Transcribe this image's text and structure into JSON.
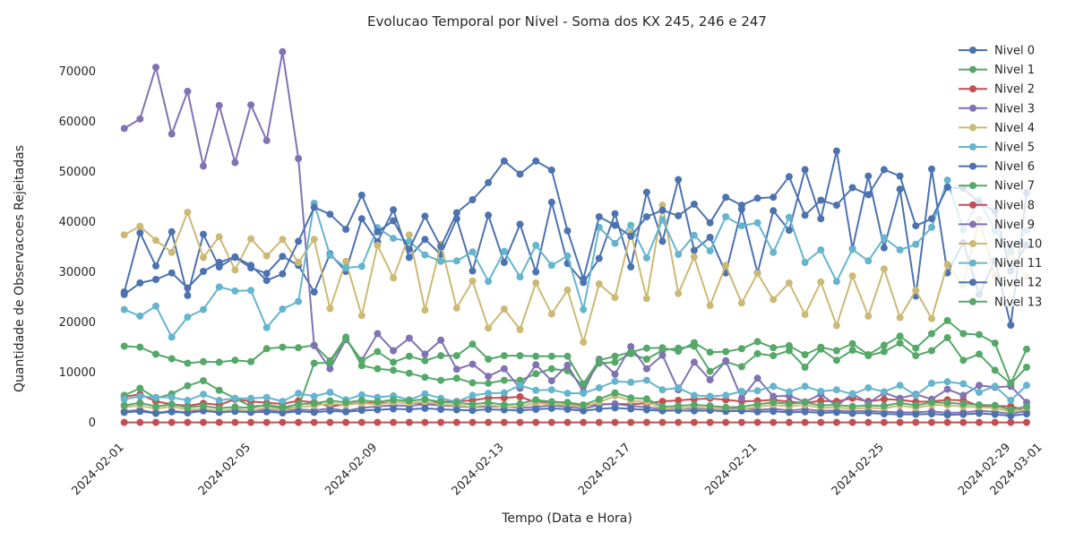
{
  "chart_data": {
    "type": "line",
    "title": "Evolucao Temporal por Nivel - Soma dos KX 245, 246 e 247",
    "xlabel": "Tempo (Data e Hora)",
    "ylabel": "Quantidade de Observacoes Rejeitadas",
    "x_start_day": 1,
    "x_step_days": 0.5,
    "xlim_days": [
      0.5,
      29.5
    ],
    "ylim": [
      -1500,
      76000
    ],
    "x_ticks": [
      {
        "day": 1,
        "label": "2024-02-01"
      },
      {
        "day": 5,
        "label": "2024-02-05"
      },
      {
        "day": 9,
        "label": "2024-02-09"
      },
      {
        "day": 13,
        "label": "2024-02-13"
      },
      {
        "day": 17,
        "label": "2024-02-17"
      },
      {
        "day": 21,
        "label": "2024-02-21"
      },
      {
        "day": 25,
        "label": "2024-02-25"
      },
      {
        "day": 29,
        "label": "2024-02-29"
      },
      {
        "day": 30,
        "label": "2024-03-01"
      }
    ],
    "y_ticks": [
      0,
      10000,
      20000,
      30000,
      40000,
      50000,
      60000,
      70000
    ],
    "legend_position": "upper-right",
    "series": [
      {
        "name": "Nivel 0",
        "color": "#4c72b0",
        "values": [
          26000,
          37800,
          31200,
          38000,
          25300,
          37500,
          31000,
          32900,
          30800,
          29700,
          33100,
          31300,
          26000,
          33600,
          30100,
          40600,
          36000,
          42400,
          32900,
          36500,
          33500,
          40600,
          30200,
          41300,
          31900,
          39500,
          30000,
          43900,
          31700,
          27900,
          32700,
          41600,
          31000,
          45900,
          36100,
          48400,
          34300,
          36900,
          29800,
          42500,
          29800,
          42200,
          38300,
          50400,
          40600,
          54100,
          34600,
          49100,
          34800,
          46500,
          25200,
          50500,
          29800,
          35800,
          25500,
          32300,
          19400,
          45800
        ]
      },
      {
        "name": "Nivel 1",
        "color": "#55a868",
        "values": [
          15200,
          15000,
          13600,
          12700,
          11800,
          12100,
          12000,
          12400,
          12100,
          14700,
          15000,
          14900,
          15400,
          12300,
          17000,
          11300,
          10700,
          10400,
          9800,
          9000,
          8400,
          8800,
          7900,
          7800,
          8400,
          8400,
          9700,
          10700,
          10300,
          7200,
          11800,
          12000,
          13700,
          12600,
          14400,
          14800,
          15200,
          10200,
          12100,
          11100,
          13700,
          13300,
          14300,
          11000,
          14600,
          12400,
          14400,
          13300,
          14100,
          15800,
          13300,
          14300,
          16900,
          12400,
          13600,
          10400,
          7700,
          11000
        ]
      },
      {
        "name": "Nivel 2",
        "color": "#c44e52",
        "values": [
          5100,
          5600,
          4200,
          3600,
          3300,
          3800,
          3500,
          4600,
          4200,
          3900,
          3700,
          4300,
          4000,
          3200,
          3600,
          3900,
          3800,
          4000,
          3900,
          3800,
          4100,
          4200,
          4400,
          4900,
          4900,
          5100,
          4000,
          4100,
          3900,
          3400,
          3600,
          3700,
          3600,
          3800,
          4200,
          4400,
          4600,
          4800,
          4500,
          4200,
          4300,
          4500,
          4100,
          3900,
          4300,
          4200,
          4800,
          4200,
          4600,
          4500,
          4100,
          4200,
          4500,
          4400,
          3300,
          3300,
          3200,
          2400
        ]
      },
      {
        "name": "Nivel 3",
        "color": "#8172b3",
        "values": [
          58600,
          60500,
          70800,
          57500,
          66000,
          51100,
          63200,
          51800,
          63300,
          56200,
          73900,
          52600,
          15300,
          10700,
          16500,
          12400,
          17700,
          14300,
          16800,
          13600,
          16400,
          10600,
          11600,
          9200,
          10700,
          6800,
          11500,
          8300,
          11400,
          6100,
          12600,
          9600,
          15100,
          10700,
          13400,
          6500,
          12000,
          8500,
          12300,
          4800,
          8800,
          5200,
          5300,
          4100,
          5600,
          3300,
          5700,
          3900,
          5900,
          4800,
          5600,
          4600,
          6600,
          5400,
          7400,
          7000,
          7200,
          4000
        ]
      },
      {
        "name": "Nivel 4",
        "color": "#ccb974",
        "values": [
          37400,
          39100,
          36300,
          33900,
          41900,
          32900,
          37000,
          30400,
          36600,
          33200,
          36500,
          31900,
          36500,
          22700,
          32100,
          21300,
          35300,
          28800,
          37400,
          22400,
          35500,
          22800,
          28200,
          18800,
          22600,
          18500,
          27800,
          21600,
          26400,
          16000,
          27600,
          24900,
          37800,
          24700,
          43300,
          25700,
          33000,
          23300,
          31300,
          23800,
          29700,
          24500,
          27800,
          21500,
          28000,
          19300,
          29200,
          21200,
          30600,
          20900,
          26300,
          20700,
          31500,
          27400,
          40500,
          29400,
          33800,
          29000
        ]
      },
      {
        "name": "Nivel 5",
        "color": "#64b5cd",
        "values": [
          22500,
          21200,
          23200,
          17000,
          21000,
          22500,
          27000,
          26200,
          26300,
          18900,
          22600,
          24100,
          43700,
          33300,
          30800,
          31100,
          38800,
          36700,
          36100,
          33400,
          32100,
          32200,
          34000,
          28100,
          34100,
          29000,
          35300,
          31300,
          33200,
          22500,
          38900,
          35700,
          39300,
          32800,
          40400,
          33500,
          37300,
          34200,
          41000,
          39200,
          39800,
          33900,
          40900,
          31900,
          34400,
          28100,
          34500,
          32200,
          36800,
          34400,
          35500,
          38900,
          48300,
          38400,
          44400,
          38300,
          34200,
          38300
        ]
      },
      {
        "name": "Nivel 6",
        "color": "#4c72b0",
        "values": [
          25500,
          27800,
          28500,
          29800,
          26800,
          30100,
          31900,
          33000,
          31300,
          28300,
          29600,
          36100,
          42900,
          41500,
          38500,
          45300,
          38000,
          40200,
          34500,
          41100,
          35000,
          41800,
          44400,
          47800,
          52100,
          49500,
          52100,
          50300,
          38200,
          28600,
          41000,
          39300,
          37100,
          41000,
          42300,
          41200,
          43500,
          39800,
          44900,
          43300,
          44700,
          44900,
          49000,
          41300,
          44300,
          43300,
          46800,
          45400,
          50400,
          49100,
          39200,
          40600,
          46900,
          46700,
          43700,
          42100,
          30200,
          35400
        ]
      },
      {
        "name": "Nivel 7",
        "color": "#55a868",
        "values": [
          5400,
          6800,
          4800,
          5700,
          7300,
          8300,
          6400,
          4800,
          3200,
          3400,
          2800,
          3000,
          11800,
          11900,
          16700,
          12300,
          14100,
          12000,
          13200,
          12300,
          13300,
          13300,
          15600,
          12600,
          13300,
          13300,
          13200,
          13200,
          13200,
          7700,
          12400,
          13200,
          14000,
          14800,
          14900,
          14200,
          15900,
          14000,
          14100,
          14700,
          16100,
          14900,
          15300,
          13500,
          15000,
          14300,
          15700,
          13500,
          15400,
          17200,
          14800,
          17700,
          20300,
          17700,
          17500,
          15800,
          7800,
          14600
        ]
      },
      {
        "name": "Nivel 8",
        "color": "#c44e52",
        "values": [
          0,
          0,
          0,
          0,
          0,
          0,
          0,
          0,
          0,
          0,
          0,
          0,
          0,
          0,
          0,
          0,
          0,
          0,
          0,
          0,
          0,
          0,
          0,
          0,
          0,
          0,
          0,
          0,
          0,
          0,
          0,
          0,
          0,
          0,
          0,
          0,
          0,
          0,
          0,
          0,
          0,
          0,
          0,
          0,
          0,
          0,
          0,
          0,
          0,
          0,
          0,
          0,
          0,
          0,
          0,
          0,
          0,
          0
        ]
      },
      {
        "name": "Nivel 9",
        "color": "#8172b3",
        "values": [
          2200,
          2500,
          1900,
          2300,
          2000,
          2600,
          2100,
          2700,
          2300,
          2500,
          2100,
          2600,
          2400,
          2800,
          2300,
          2900,
          3200,
          3400,
          3300,
          3600,
          3400,
          3200,
          3000,
          3200,
          3100,
          2900,
          3100,
          3400,
          3100,
          2700,
          3500,
          3700,
          3300,
          3000,
          2600,
          2900,
          2700,
          2800,
          2600,
          2800,
          2500,
          2700,
          2400,
          2600,
          2300,
          2400,
          2200,
          2300,
          2100,
          2000,
          2000,
          2200,
          1900,
          2000,
          2300,
          2100,
          1700,
          2300
        ]
      },
      {
        "name": "Nivel 10",
        "color": "#ccb974",
        "values": [
          3000,
          3400,
          2700,
          3200,
          2500,
          2700,
          2300,
          2600,
          2300,
          3000,
          2400,
          3100,
          3300,
          3800,
          3500,
          3800,
          3600,
          4000,
          3800,
          4100,
          3600,
          3400,
          3100,
          3500,
          3000,
          3200,
          3900,
          3600,
          3500,
          3100,
          4000,
          5300,
          4300,
          4100,
          2600,
          2800,
          3000,
          2800,
          2500,
          2600,
          3100,
          3500,
          3200,
          3500,
          2900,
          3000,
          2700,
          2900,
          2800,
          3400,
          2900,
          3500,
          3400,
          3200,
          3000,
          2900,
          2100,
          2700
        ]
      },
      {
        "name": "Nivel 11",
        "color": "#64b5cd",
        "values": [
          4600,
          5200,
          5000,
          5000,
          4400,
          5600,
          4400,
          4800,
          4800,
          5000,
          4200,
          5800,
          5200,
          6000,
          4500,
          5500,
          5000,
          5300,
          4500,
          5700,
          4800,
          4100,
          5400,
          5800,
          5900,
          7400,
          6400,
          6500,
          5800,
          5800,
          6900,
          8200,
          8000,
          8400,
          6500,
          6900,
          5400,
          5200,
          5400,
          6200,
          6300,
          7200,
          6100,
          7200,
          6200,
          6500,
          5600,
          6900,
          6100,
          7400,
          5400,
          7800,
          8100,
          7700,
          6000,
          7200,
          4400,
          7400
        ]
      },
      {
        "name": "Nivel 12",
        "color": "#4c72b0",
        "values": [
          2000,
          2200,
          1800,
          2100,
          1900,
          2300,
          2000,
          2200,
          2000,
          2100,
          1900,
          2200,
          2000,
          2300,
          2100,
          2400,
          2500,
          2700,
          2600,
          2800,
          2600,
          2500,
          2400,
          2600,
          2500,
          2400,
          2600,
          2800,
          2600,
          2300,
          2700,
          2900,
          2700,
          2500,
          2300,
          2400,
          2300,
          2400,
          2200,
          2300,
          2100,
          2200,
          2000,
          2100,
          1900,
          2000,
          1800,
          1900,
          1700,
          1600,
          1600,
          1700,
          1500,
          1600,
          1800,
          1600,
          1300,
          1700
        ]
      },
      {
        "name": "Nivel 13",
        "color": "#55a868",
        "values": [
          3400,
          3900,
          3200,
          3600,
          3000,
          3300,
          2800,
          3100,
          2900,
          3500,
          3000,
          3600,
          3800,
          4300,
          4000,
          4400,
          4100,
          4500,
          4300,
          4600,
          4100,
          3900,
          3600,
          4000,
          3500,
          3700,
          4500,
          4100,
          4000,
          3500,
          4600,
          5900,
          4900,
          4700,
          3100,
          3300,
          3500,
          3300,
          3000,
          3100,
          3600,
          4000,
          3700,
          4000,
          3400,
          3500,
          3200,
          3400,
          3300,
          3900,
          3400,
          4000,
          3900,
          3700,
          3500,
          3400,
          2500,
          3200
        ]
      }
    ]
  }
}
